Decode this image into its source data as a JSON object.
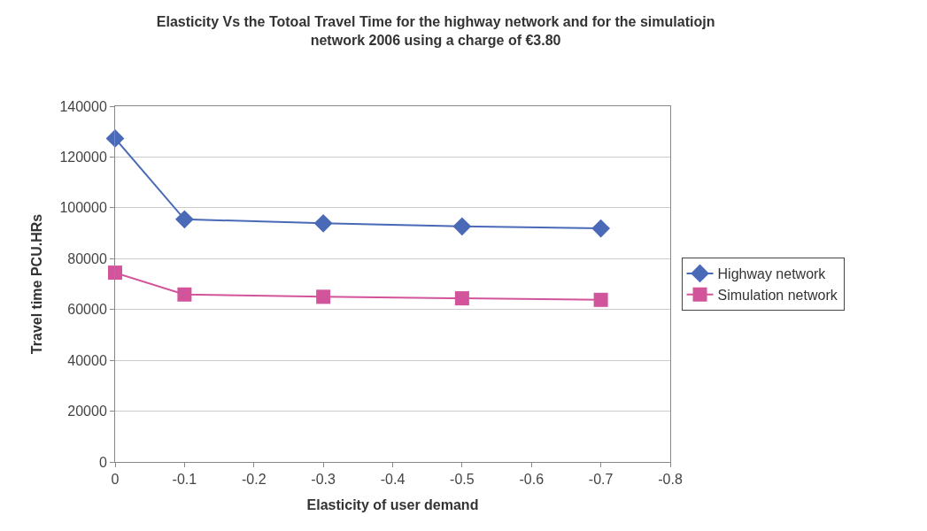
{
  "chart_data": {
    "type": "line",
    "title": "Elasticity Vs the Totoal Travel Time for the highway network and for the simulatiojn network 2006 using a charge of €3.80",
    "xlabel": "Elasticity of user demand",
    "ylabel": "Travel time PCU.HRs",
    "x": [
      0,
      -0.1,
      -0.3,
      -0.5,
      -0.7
    ],
    "series": [
      {
        "name": "Highway network",
        "color": "#4a6ab8",
        "marker": "diamond",
        "values": [
          127300,
          95500,
          93900,
          92700,
          91900
        ]
      },
      {
        "name": "Simulation network",
        "color": "#d2549a",
        "marker": "square",
        "values": [
          74500,
          65900,
          65000,
          64400,
          63800
        ]
      }
    ],
    "xlim": [
      0,
      -0.8
    ],
    "xticks": [
      0,
      -0.1,
      -0.2,
      -0.3,
      -0.4,
      -0.5,
      -0.6,
      -0.7,
      -0.8
    ],
    "ylim": [
      0,
      140000
    ],
    "yticks": [
      0,
      20000,
      40000,
      60000,
      80000,
      100000,
      120000,
      140000
    ],
    "grid": "y",
    "legend": "right",
    "line_style": "solid"
  }
}
